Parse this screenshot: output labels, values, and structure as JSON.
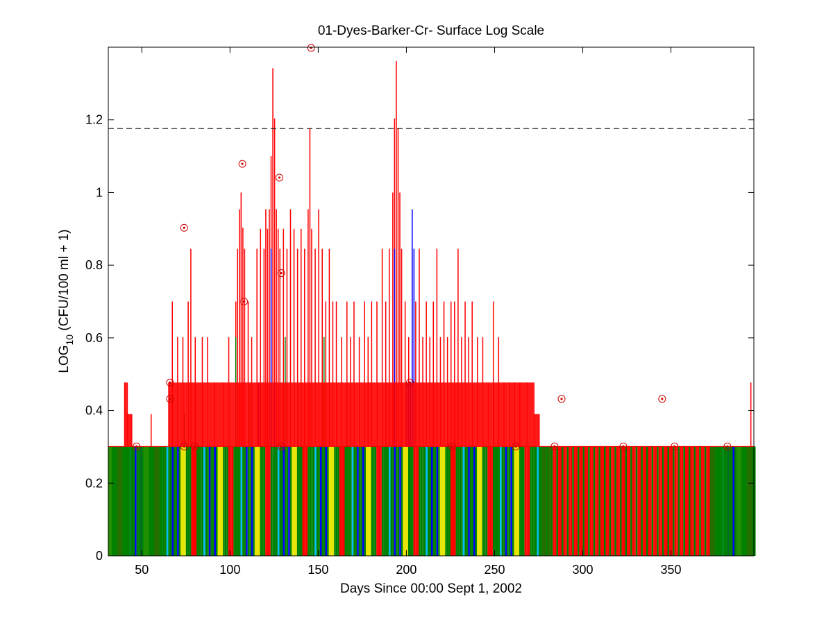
{
  "chart_data": {
    "type": "bar",
    "title": "01-Dyes-Barker-Cr- Surface Log Scale",
    "xlabel": "Days Since 00:00 Sept 1, 2002",
    "ylabel": {
      "prefix": "LOG",
      "subscript": "10",
      "suffix": " (CFU/100 ml + 1)"
    },
    "xlim": [
      31,
      397
    ],
    "ylim": [
      0,
      1.4
    ],
    "x_ticks": [
      50,
      100,
      150,
      200,
      250,
      300,
      350
    ],
    "y_ticks": [
      0,
      0.2,
      0.4,
      0.6,
      0.8,
      1,
      1.2
    ],
    "threshold": {
      "value": 1.176,
      "style": "dashed",
      "color": "#000000"
    },
    "grid": false,
    "base_level": 0.301,
    "colors": {
      "red": "#ff0000",
      "green": "#008000",
      "blue": "#0000ff",
      "yellow": "#e5e500",
      "cyan": "#00bfff",
      "marker": "#cc0000"
    },
    "series": [
      {
        "color": "red",
        "bars": [
          [
            40,
            0.477
          ],
          [
            41.5,
            0.477
          ],
          [
            44,
            0.39
          ],
          [
            55,
            0.39
          ],
          [
            65,
            0.477
          ],
          [
            67,
            0.7
          ],
          [
            70,
            0.602
          ],
          [
            73,
            0.602
          ],
          [
            76,
            0.7
          ],
          [
            77.5,
            0.845
          ],
          [
            80,
            0.602
          ],
          [
            84,
            0.602
          ],
          [
            87,
            0.602
          ],
          [
            91,
            0.477
          ],
          [
            96,
            0.477
          ],
          [
            99,
            0.602
          ],
          [
            103,
            0.7
          ],
          [
            104,
            0.845
          ],
          [
            105,
            0.954
          ],
          [
            106,
            1.0
          ],
          [
            107,
            0.903
          ],
          [
            108,
            0.845
          ],
          [
            110,
            0.7
          ],
          [
            112,
            0.602
          ],
          [
            115,
            0.845
          ],
          [
            117,
            0.9
          ],
          [
            119,
            0.845
          ],
          [
            120,
            0.954
          ],
          [
            121,
            0.9
          ],
          [
            122,
            0.954
          ],
          [
            123,
            1.1
          ],
          [
            124,
            1.342
          ],
          [
            125,
            1.204
          ],
          [
            126,
            0.954
          ],
          [
            127,
            0.9
          ],
          [
            128,
            0.845
          ],
          [
            130,
            0.9
          ],
          [
            132,
            0.845
          ],
          [
            134,
            0.954
          ],
          [
            136,
            0.9
          ],
          [
            138,
            0.845
          ],
          [
            140,
            0.9
          ],
          [
            142,
            0.845
          ],
          [
            144,
            0.954
          ],
          [
            145,
            1.176
          ],
          [
            146,
            0.9
          ],
          [
            148,
            0.845
          ],
          [
            150,
            0.954
          ],
          [
            152,
            0.845
          ],
          [
            154,
            0.7
          ],
          [
            156,
            0.845
          ],
          [
            158,
            0.7
          ],
          [
            160,
            0.7
          ],
          [
            163,
            0.602
          ],
          [
            166,
            0.7
          ],
          [
            168,
            0.602
          ],
          [
            170,
            0.7
          ],
          [
            173,
            0.602
          ],
          [
            176,
            0.7
          ],
          [
            178,
            0.602
          ],
          [
            180,
            0.7
          ],
          [
            183,
            0.7
          ],
          [
            186,
            0.845
          ],
          [
            188,
            0.7
          ],
          [
            190,
            0.845
          ],
          [
            192,
            1.0
          ],
          [
            193,
            1.204
          ],
          [
            194,
            1.362
          ],
          [
            195,
            1.176
          ],
          [
            196,
            1.0
          ],
          [
            197,
            0.845
          ],
          [
            199,
            0.7
          ],
          [
            201,
            0.602
          ],
          [
            203,
            0.845
          ],
          [
            205,
            0.7
          ],
          [
            207,
            0.845
          ],
          [
            209,
            0.602
          ],
          [
            211,
            0.7
          ],
          [
            213,
            0.602
          ],
          [
            215,
            0.7
          ],
          [
            217,
            0.845
          ],
          [
            219,
            0.602
          ],
          [
            221,
            0.7
          ],
          [
            223,
            0.602
          ],
          [
            225,
            0.7
          ],
          [
            227,
            0.7
          ],
          [
            229,
            0.845
          ],
          [
            231,
            0.602
          ],
          [
            233,
            0.7
          ],
          [
            235,
            0.602
          ],
          [
            237,
            0.7
          ],
          [
            240,
            0.602
          ],
          [
            243,
            0.602
          ],
          [
            246,
            0.477
          ],
          [
            249,
            0.7
          ],
          [
            252,
            0.602
          ],
          [
            255,
            0.477
          ],
          [
            258,
            0.477
          ],
          [
            261,
            0.477
          ],
          [
            264,
            0.477
          ],
          [
            268,
            0.477
          ],
          [
            272,
            0.477
          ],
          [
            275,
            0.39
          ],
          [
            395,
            0.477
          ]
        ]
      },
      {
        "color": "blue",
        "bars": [
          [
            116,
            0.477
          ],
          [
            123,
            0.845
          ],
          [
            125,
            0.477
          ],
          [
            193,
            0.845
          ],
          [
            200,
            0.477
          ],
          [
            201,
            0.477
          ],
          [
            202,
            0.477
          ],
          [
            203,
            0.954
          ],
          [
            204,
            0.845
          ]
        ]
      },
      {
        "color": "green",
        "bars": [
          [
            74,
            0.39
          ],
          [
            103,
            0.602
          ],
          [
            111,
            0.477
          ],
          [
            131,
            0.602
          ],
          [
            153,
            0.602
          ]
        ]
      }
    ],
    "base_colors": [
      "green",
      "blue",
      "green",
      "yellow",
      "green",
      "red",
      "green",
      "cyan",
      "green",
      "blue",
      "yellow",
      "green",
      "red",
      "green"
    ],
    "marked_points": [
      [
        47,
        0.301
      ],
      [
        66,
        0.477
      ],
      [
        66,
        0.432
      ],
      [
        74,
        0.903
      ],
      [
        74,
        0.301
      ],
      [
        80,
        0.301
      ],
      [
        107,
        1.079
      ],
      [
        108,
        0.7
      ],
      [
        128,
        1.041
      ],
      [
        129,
        0.778
      ],
      [
        129,
        0.301
      ],
      [
        146,
        1.398
      ],
      [
        202,
        0.477
      ],
      [
        226,
        0.301
      ],
      [
        262,
        0.301
      ],
      [
        284,
        0.301
      ],
      [
        288,
        0.432
      ],
      [
        323,
        0.301
      ],
      [
        345,
        0.432
      ],
      [
        352,
        0.301
      ],
      [
        382,
        0.301
      ]
    ]
  }
}
